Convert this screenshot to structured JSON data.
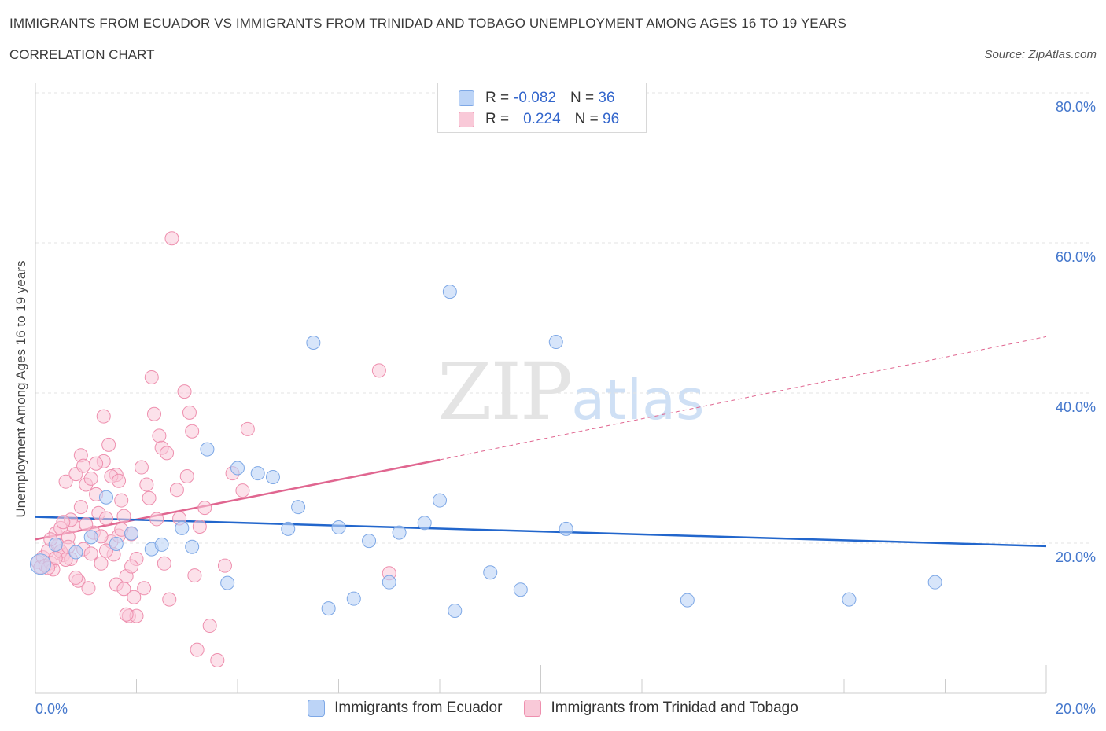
{
  "header": {
    "title": "IMMIGRANTS FROM ECUADOR VS IMMIGRANTS FROM TRINIDAD AND TOBAGO UNEMPLOYMENT AMONG AGES 16 TO 19 YEARS",
    "subtitle": "CORRELATION CHART",
    "source": "Source: ZipAtlas.com"
  },
  "watermark": {
    "zip": "ZIP",
    "atlas": "atlas"
  },
  "legend": {
    "rows": [
      {
        "r_label": "R =",
        "r_value": "-0.082",
        "n_label": "N =",
        "n_value": "36"
      },
      {
        "r_label": "R =",
        "r_value": "0.224",
        "n_label": "N =",
        "n_value": "96"
      }
    ]
  },
  "bottom_legend": {
    "items": [
      "Immigrants from Ecuador",
      "Immigrants from Trinidad and Tobago"
    ]
  },
  "chart_data": {
    "type": "scatter",
    "ylabel": "Unemployment Among Ages 16 to 19 years",
    "xlim": [
      0,
      20
    ],
    "ylim": [
      0,
      80
    ],
    "x_tick_labels": [
      "0.0%",
      "20.0%"
    ],
    "y_tick_labels": [
      "20.0%",
      "40.0%",
      "60.0%",
      "80.0%"
    ],
    "y_ticks": [
      20,
      40,
      60,
      80
    ],
    "grid": true,
    "colors": {
      "ecuador_fill": "#bcd4f7",
      "ecuador_stroke": "#7ea8e6",
      "ecuador_line": "#2266cc",
      "tt_fill": "#f9c9d8",
      "tt_stroke": "#ee8fae",
      "tt_line": "#e06690"
    },
    "series": [
      {
        "name": "Immigrants from Ecuador",
        "trend": {
          "x": [
            0,
            20
          ],
          "y": [
            23.5,
            19.6
          ]
        },
        "points": [
          [
            0.1,
            17.2
          ],
          [
            0.4,
            19.8
          ],
          [
            0.8,
            18.8
          ],
          [
            1.1,
            20.8
          ],
          [
            1.4,
            26.1
          ],
          [
            1.6,
            19.9
          ],
          [
            1.9,
            21.3
          ],
          [
            2.3,
            19.2
          ],
          [
            2.5,
            19.8
          ],
          [
            2.9,
            22.0
          ],
          [
            3.1,
            19.5
          ],
          [
            3.4,
            32.5
          ],
          [
            3.8,
            14.7
          ],
          [
            4.0,
            30.0
          ],
          [
            4.4,
            29.3
          ],
          [
            4.7,
            28.8
          ],
          [
            5.0,
            21.9
          ],
          [
            5.2,
            24.8
          ],
          [
            5.5,
            46.7
          ],
          [
            5.8,
            11.3
          ],
          [
            6.0,
            22.1
          ],
          [
            6.3,
            12.6
          ],
          [
            6.6,
            20.3
          ],
          [
            7.0,
            14.8
          ],
          [
            7.2,
            21.4
          ],
          [
            7.7,
            22.7
          ],
          [
            8.0,
            25.7
          ],
          [
            8.2,
            53.5
          ],
          [
            8.3,
            11.0
          ],
          [
            9.0,
            16.1
          ],
          [
            9.6,
            13.8
          ],
          [
            10.3,
            46.8
          ],
          [
            10.5,
            21.9
          ],
          [
            12.9,
            12.4
          ],
          [
            16.1,
            12.5
          ],
          [
            17.8,
            14.8
          ]
        ]
      },
      {
        "name": "Immigrants from Trinidad and Tobago",
        "trend": {
          "x": [
            0,
            8.0
          ],
          "y": [
            20.5,
            31.1
          ]
        },
        "trend_ext": {
          "x": [
            8.0,
            20
          ],
          "y": [
            31.1,
            47.5
          ]
        },
        "points": [
          [
            0.05,
            17.5
          ],
          [
            0.1,
            16.8
          ],
          [
            0.15,
            18.1
          ],
          [
            0.2,
            17.0
          ],
          [
            0.25,
            19.0
          ],
          [
            0.3,
            17.4
          ],
          [
            0.35,
            16.5
          ],
          [
            0.4,
            21.3
          ],
          [
            0.45,
            19.7
          ],
          [
            0.5,
            22.0
          ],
          [
            0.55,
            18.4
          ],
          [
            0.6,
            28.2
          ],
          [
            0.65,
            20.8
          ],
          [
            0.7,
            17.9
          ],
          [
            0.75,
            22.3
          ],
          [
            0.8,
            29.2
          ],
          [
            0.85,
            15.0
          ],
          [
            0.9,
            31.7
          ],
          [
            0.95,
            19.2
          ],
          [
            1.0,
            27.8
          ],
          [
            1.05,
            14.0
          ],
          [
            1.1,
            18.6
          ],
          [
            1.15,
            21.4
          ],
          [
            1.2,
            26.5
          ],
          [
            1.25,
            24.0
          ],
          [
            1.3,
            17.3
          ],
          [
            1.35,
            30.9
          ],
          [
            1.4,
            23.3
          ],
          [
            1.45,
            33.1
          ],
          [
            1.5,
            20.2
          ],
          [
            1.55,
            18.5
          ],
          [
            1.6,
            29.1
          ],
          [
            1.65,
            21.0
          ],
          [
            1.7,
            25.7
          ],
          [
            1.75,
            23.6
          ],
          [
            1.8,
            15.6
          ],
          [
            1.85,
            10.3
          ],
          [
            1.9,
            21.2
          ],
          [
            1.95,
            12.8
          ],
          [
            2.0,
            17.9
          ],
          [
            2.1,
            30.1
          ],
          [
            2.15,
            14.0
          ],
          [
            2.2,
            27.8
          ],
          [
            2.3,
            42.1
          ],
          [
            2.35,
            37.2
          ],
          [
            2.45,
            34.3
          ],
          [
            2.5,
            32.7
          ],
          [
            2.55,
            17.3
          ],
          [
            2.65,
            12.5
          ],
          [
            2.7,
            60.6
          ],
          [
            2.8,
            27.1
          ],
          [
            2.85,
            23.3
          ],
          [
            2.95,
            40.2
          ],
          [
            3.0,
            28.9
          ],
          [
            3.05,
            37.4
          ],
          [
            3.1,
            34.9
          ],
          [
            3.15,
            15.7
          ],
          [
            3.2,
            5.8
          ],
          [
            3.25,
            22.2
          ],
          [
            3.35,
            24.7
          ],
          [
            3.45,
            9.0
          ],
          [
            3.6,
            4.4
          ],
          [
            3.75,
            17.0
          ],
          [
            3.9,
            29.3
          ],
          [
            4.1,
            27.0
          ],
          [
            4.2,
            35.2
          ],
          [
            1.6,
            14.5
          ],
          [
            2.0,
            10.3
          ],
          [
            1.8,
            10.5
          ],
          [
            1.3,
            20.9
          ],
          [
            0.9,
            24.8
          ],
          [
            1.1,
            28.6
          ],
          [
            0.7,
            23.1
          ],
          [
            0.5,
            18.9
          ],
          [
            2.4,
            23.2
          ],
          [
            1.9,
            16.9
          ],
          [
            2.6,
            32.0
          ],
          [
            0.3,
            20.5
          ],
          [
            0.6,
            17.8
          ],
          [
            1.0,
            22.5
          ],
          [
            1.2,
            30.6
          ],
          [
            1.5,
            28.9
          ],
          [
            1.7,
            21.8
          ],
          [
            0.4,
            18.0
          ],
          [
            1.4,
            19.0
          ],
          [
            0.8,
            15.4
          ],
          [
            1.65,
            28.3
          ],
          [
            2.25,
            26.0
          ],
          [
            6.8,
            43.0
          ],
          [
            7.0,
            16.0
          ],
          [
            1.75,
            13.9
          ],
          [
            1.35,
            36.9
          ],
          [
            0.95,
            30.3
          ],
          [
            0.55,
            22.8
          ],
          [
            0.25,
            16.7
          ],
          [
            0.65,
            19.5
          ]
        ]
      }
    ]
  }
}
